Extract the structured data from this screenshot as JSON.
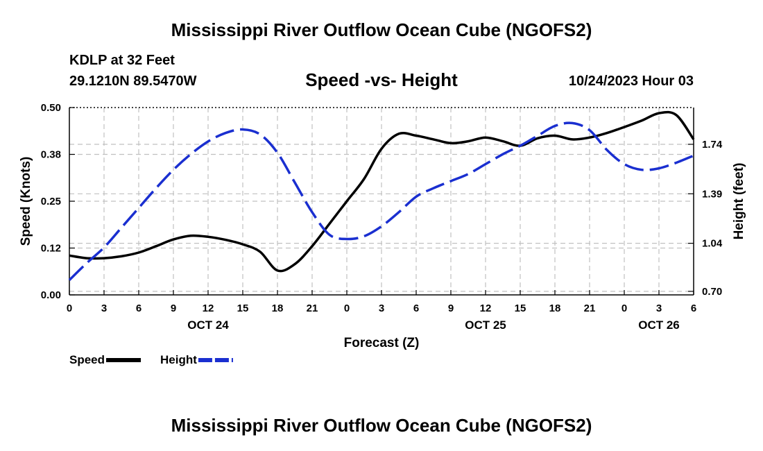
{
  "chart_data": {
    "type": "line",
    "title": "Mississippi River Outflow Ocean Cube (NGOFS2)",
    "bottom_title": "Mississippi River Outflow Ocean Cube (NGOFS2)",
    "station": "KDLP at 32 Feet",
    "coords": "29.1210N  89.5470W",
    "subtitle": "Speed -vs- Height",
    "datetime": "10/24/2023 Hour 03",
    "xlabel": "Forecast (Z)",
    "ylabel_left": "Speed (Knots)",
    "ylabel_right": "Height (feet)",
    "x_range": [
      0,
      54
    ],
    "x_ticks": [
      0,
      3,
      6,
      9,
      12,
      15,
      18,
      21,
      24,
      27,
      30,
      33,
      36,
      39,
      42,
      45,
      48,
      51,
      54
    ],
    "x_tick_labels": [
      "0",
      "3",
      "6",
      "9",
      "12",
      "15",
      "18",
      "21",
      "0",
      "3",
      "6",
      "9",
      "12",
      "15",
      "18",
      "21",
      "0",
      "3",
      "6"
    ],
    "day_labels": [
      {
        "x": 12,
        "label": "OCT 24"
      },
      {
        "x": 36,
        "label": "OCT 25"
      },
      {
        "x": 51,
        "label": "OCT 26"
      }
    ],
    "y_left": {
      "range": [
        0,
        0.5
      ],
      "ticks": [
        0.0,
        0.125,
        0.25,
        0.375,
        0.5
      ],
      "tick_labels": [
        "0.00",
        "0.12",
        "0.25",
        "0.38",
        "0.50"
      ]
    },
    "y_right": {
      "range": [
        0.675,
        2.0
      ],
      "ticks": [
        0.7,
        1.04,
        1.39,
        1.74
      ],
      "tick_labels": [
        "0.70",
        "1.04",
        "1.39",
        "1.74"
      ]
    },
    "grid": true,
    "series": [
      {
        "name": "Speed",
        "axis": "left",
        "color": "#000000",
        "style": "solid",
        "x": [
          0,
          1.5,
          3,
          4.5,
          6,
          7.5,
          9,
          10.5,
          12,
          13.5,
          15,
          16.5,
          18,
          19.5,
          21,
          22.5,
          24,
          25.5,
          27,
          28.5,
          30,
          31.5,
          33,
          34.5,
          36,
          37.5,
          39,
          40.5,
          42,
          43.5,
          45,
          46.5,
          48,
          49.5,
          51,
          52.5,
          54
        ],
        "values": [
          0.105,
          0.098,
          0.098,
          0.103,
          0.113,
          0.13,
          0.148,
          0.158,
          0.155,
          0.147,
          0.135,
          0.115,
          0.065,
          0.082,
          0.13,
          0.19,
          0.25,
          0.31,
          0.39,
          0.43,
          0.425,
          0.415,
          0.405,
          0.41,
          0.42,
          0.41,
          0.398,
          0.418,
          0.425,
          0.415,
          0.42,
          0.432,
          0.448,
          0.465,
          0.485,
          0.48,
          0.415
        ]
      },
      {
        "name": "Height",
        "axis": "right",
        "color": "#1a2fd0",
        "style": "dashed",
        "x": [
          0,
          1.5,
          3,
          4.5,
          6,
          7.5,
          9,
          10.5,
          12,
          13.5,
          15,
          16.5,
          18,
          19.5,
          21,
          22.5,
          24,
          25.5,
          27,
          28.5,
          30,
          31.5,
          33,
          34.5,
          36,
          37.5,
          39,
          40.5,
          42,
          43.5,
          45,
          46.5,
          48,
          49.5,
          51,
          52.5,
          54
        ],
        "values": [
          0.78,
          0.9,
          1.01,
          1.15,
          1.29,
          1.43,
          1.56,
          1.67,
          1.76,
          1.82,
          1.845,
          1.81,
          1.68,
          1.47,
          1.26,
          1.1,
          1.07,
          1.09,
          1.16,
          1.26,
          1.37,
          1.43,
          1.48,
          1.53,
          1.6,
          1.67,
          1.73,
          1.8,
          1.87,
          1.89,
          1.84,
          1.7,
          1.6,
          1.56,
          1.57,
          1.61,
          1.66
        ]
      }
    ],
    "legend": [
      {
        "label": "Speed",
        "color": "#000000",
        "style": "solid"
      },
      {
        "label": "Height",
        "color": "#1a2fd0",
        "style": "dashed"
      }
    ]
  }
}
